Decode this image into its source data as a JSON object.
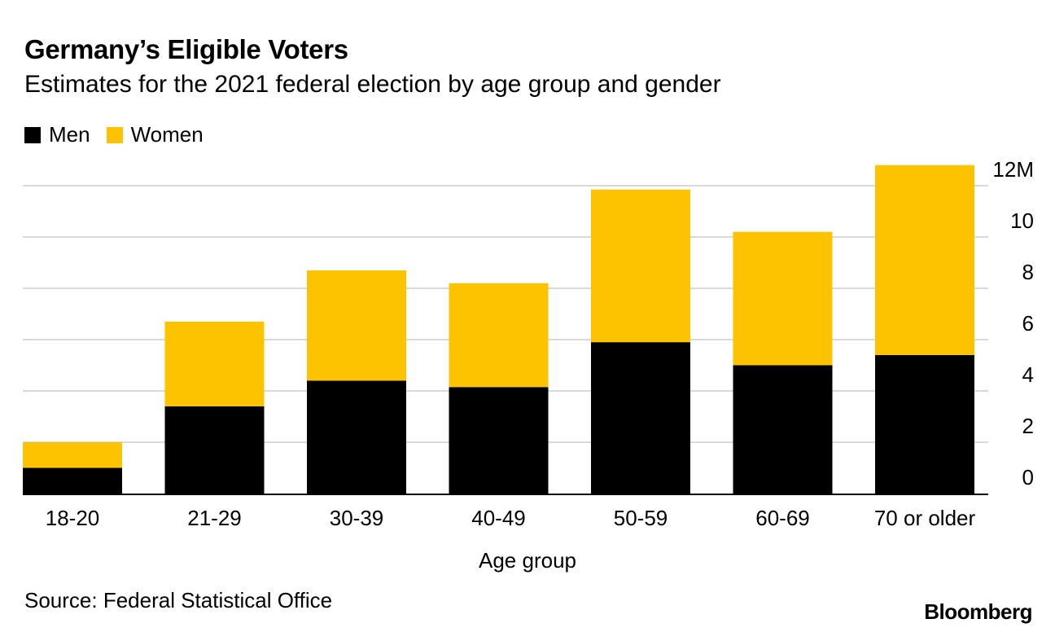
{
  "header": {
    "title": "Germany’s Eligible Voters",
    "subtitle": "Estimates for the 2021 federal election by age group and gender"
  },
  "footer": {
    "source": "Source: Federal Statistical Office",
    "brand": "Bloomberg"
  },
  "chart_data": {
    "type": "bar",
    "stacked": true,
    "categories": [
      "18-20",
      "21-29",
      "30-39",
      "40-49",
      "50-59",
      "60-69",
      "70 or older"
    ],
    "series": [
      {
        "name": "Men",
        "color": "#000000",
        "values": [
          1.0,
          3.4,
          4.4,
          4.15,
          5.9,
          5.0,
          5.4
        ]
      },
      {
        "name": "Women",
        "color": "#fdc300",
        "values": [
          1.0,
          3.3,
          4.3,
          4.05,
          5.95,
          5.2,
          7.4
        ]
      }
    ],
    "xlabel": "Age group",
    "ylabel": "",
    "ylim": [
      0,
      12
    ],
    "yticks": [
      0,
      2,
      4,
      6,
      8,
      10,
      12
    ],
    "ytick_labels": [
      "0",
      "2",
      "4",
      "6",
      "8",
      "10",
      "12M"
    ],
    "y_axis_side": "right",
    "grid": true,
    "legend": "top-left"
  }
}
